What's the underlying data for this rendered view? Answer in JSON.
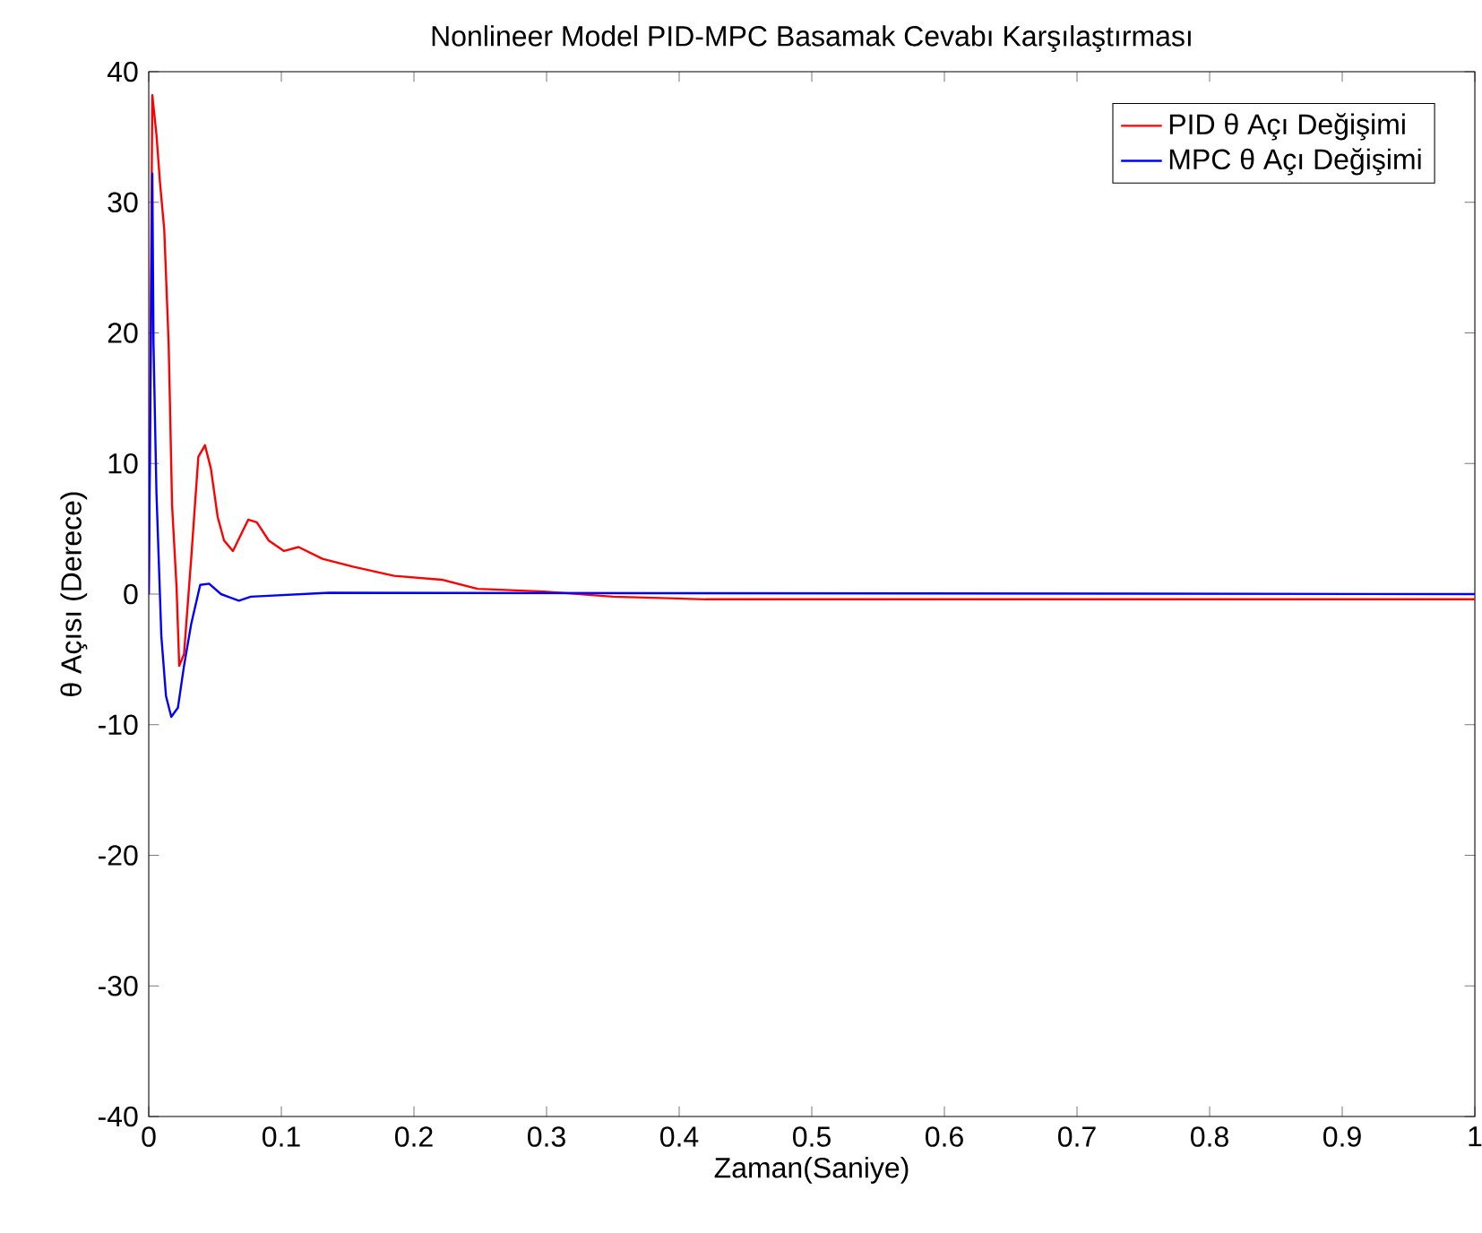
{
  "chart_data": {
    "type": "line",
    "title": "Nonlineer Model PID-MPC Basamak Cevabı Karşılaştırması",
    "xlabel": "Zaman(Saniye)",
    "ylabel": "θ Açısı (Derece)",
    "xlim": [
      0,
      1
    ],
    "ylim": [
      -40,
      40
    ],
    "xticks": [
      0,
      0.1,
      0.2,
      0.3,
      0.4,
      0.5,
      0.6,
      0.7,
      0.8,
      0.9,
      1
    ],
    "yticks": [
      -40,
      -30,
      -20,
      -10,
      0,
      10,
      20,
      30,
      40
    ],
    "legend": "top right",
    "series": [
      {
        "name": "PID θ Açı Değişimi",
        "color": "#ff0000",
        "x": [
          0,
          0.0027,
          0.0058,
          0.0085,
          0.0117,
          0.015,
          0.016,
          0.0176,
          0.021,
          0.023,
          0.0266,
          0.032,
          0.0374,
          0.0424,
          0.0469,
          0.052,
          0.0568,
          0.0635,
          0.075,
          0.0815,
          0.0905,
          0.102,
          0.113,
          0.131,
          0.154,
          0.185,
          0.221,
          0.248,
          0.298,
          0.35,
          0.42,
          1
        ],
        "values": [
          0,
          38.2,
          35.2,
          31.5,
          27.9,
          19.2,
          14.6,
          6.8,
          0.5,
          -5.5,
          -4.6,
          2.7,
          10.5,
          11.4,
          9.6,
          5.9,
          4.1,
          3.3,
          5.7,
          5.5,
          4.1,
          3.3,
          3.6,
          2.7,
          2.1,
          1.4,
          1.1,
          0.4,
          0.2,
          -0.2,
          -0.4,
          -0.4
        ]
      },
      {
        "name": "MPC θ Açı Değişimi",
        "color": "#0000ff",
        "x": [
          0,
          0.0027,
          0.0036,
          0.0058,
          0.0095,
          0.013,
          0.017,
          0.022,
          0.0266,
          0.032,
          0.0388,
          0.0455,
          0.0545,
          0.068,
          0.077,
          0.136,
          1
        ],
        "values": [
          0,
          32.2,
          19.2,
          7.8,
          -3.2,
          -7.8,
          -9.4,
          -8.7,
          -5.5,
          -2.3,
          0.7,
          0.8,
          0,
          -0.5,
          -0.2,
          0.1,
          0
        ]
      }
    ]
  }
}
